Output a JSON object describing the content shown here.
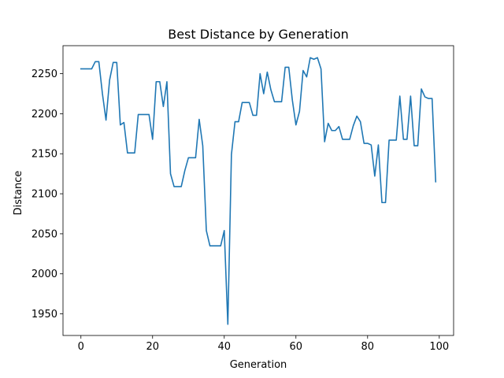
{
  "chart_data": {
    "type": "line",
    "title": "Best Distance by Generation",
    "xlabel": "Generation",
    "ylabel": "Distance",
    "xlim": [
      -5,
      104
    ],
    "ylim": [
      1923,
      2285
    ],
    "xticks": [
      0,
      20,
      40,
      60,
      80,
      100
    ],
    "yticks": [
      1950,
      2000,
      2050,
      2100,
      2150,
      2200,
      2250
    ],
    "grid": false,
    "legend": false,
    "colors": {
      "line": "#1f77b4"
    },
    "series": [
      {
        "x": [
          0,
          1,
          2,
          3,
          4,
          5,
          6,
          7,
          8,
          9,
          10,
          11,
          12,
          13,
          14,
          15,
          16,
          17,
          18,
          19,
          20,
          21,
          22,
          23,
          24,
          25,
          26,
          27,
          28,
          29,
          30,
          31,
          32,
          33,
          34,
          35,
          36,
          37,
          38,
          39,
          40,
          41,
          42,
          43,
          44,
          45,
          46,
          47,
          48,
          49,
          50,
          51,
          52,
          53,
          54,
          55,
          56,
          57,
          58,
          59,
          60,
          61,
          62,
          63,
          64,
          65,
          66,
          67,
          68,
          69,
          70,
          71,
          72,
          73,
          74,
          75,
          76,
          77,
          78,
          79,
          80,
          81,
          82,
          83,
          84,
          85,
          86,
          87,
          88,
          89,
          90,
          91,
          92,
          93,
          94,
          95,
          96,
          97,
          98,
          99
        ],
        "values": [
          2256,
          2256,
          2256,
          2256,
          2265,
          2265,
          2225,
          2192,
          2242,
          2264,
          2264,
          2186,
          2189,
          2151,
          2151,
          2151,
          2199,
          2199,
          2199,
          2199,
          2168,
          2240,
          2240,
          2209,
          2240,
          2125,
          2109,
          2109,
          2109,
          2129,
          2145,
          2145,
          2145,
          2193,
          2160,
          2054,
          2035,
          2035,
          2035,
          2035,
          2054,
          1937,
          2149,
          2190,
          2190,
          2214,
          2214,
          2214,
          2198,
          2198,
          2250,
          2225,
          2252,
          2230,
          2215,
          2215,
          2215,
          2258,
          2258,
          2217,
          2186,
          2203,
          2254,
          2246,
          2270,
          2268,
          2270,
          2256,
          2165,
          2188,
          2179,
          2179,
          2184,
          2168,
          2168,
          2168,
          2185,
          2197,
          2190,
          2163,
          2163,
          2161,
          2122,
          2161,
          2089,
          2089,
          2167,
          2167,
          2167,
          2222,
          2168,
          2168,
          2222,
          2160,
          2160,
          2231,
          2221,
          2219,
          2219,
          2115
        ]
      }
    ]
  }
}
